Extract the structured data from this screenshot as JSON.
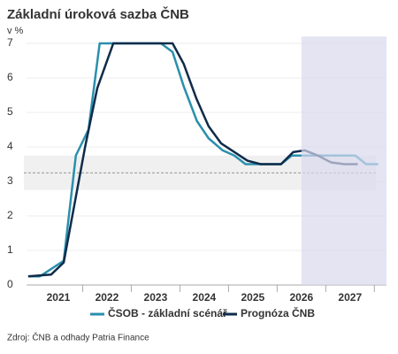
{
  "chart_data": {
    "type": "line",
    "title": "Základní úroková sazba ČNB",
    "y_unit": "v %",
    "source": "Zdroj: ČNB a odhady Patria Finance",
    "xlim": [
      2020.85,
      2028.25
    ],
    "xticks": [
      {
        "value": 2021.5,
        "label": "2021"
      },
      {
        "value": 2022.5,
        "label": "2022"
      },
      {
        "value": 2023.5,
        "label": "2023"
      },
      {
        "value": 2024.5,
        "label": "2024"
      },
      {
        "value": 2025.5,
        "label": "2025"
      },
      {
        "value": 2026.5,
        "label": "2026"
      },
      {
        "value": 2027.5,
        "label": "2027"
      }
    ],
    "ylim": [
      0,
      7.2
    ],
    "yticks": [
      0,
      1,
      2,
      3,
      4,
      5,
      6,
      7
    ],
    "grid": true,
    "forecast_start": 2026.5,
    "band": [
      2.75,
      3.75
    ],
    "reference_line": 3.25,
    "series": [
      {
        "name": "ČSOB - základní scénář",
        "color": "#2a8fad",
        "x": [
          2020.88,
          2021.12,
          2021.61,
          2021.86,
          2022.12,
          2022.35,
          2023.61,
          2023.85,
          2024.08,
          2024.35,
          2024.59,
          2024.88,
          2025.12,
          2025.35,
          2026.08,
          2026.3,
          2027.61,
          2027.83,
          2028.08
        ],
        "values": [
          0.25,
          0.25,
          0.7,
          3.75,
          4.5,
          7,
          7,
          6.75,
          5.75,
          4.75,
          4.25,
          3.9,
          3.75,
          3.5,
          3.5,
          3.75,
          3.75,
          3.5,
          3.5
        ]
      },
      {
        "name": "Prognóza ČNB",
        "color": "#0f2b4a",
        "x": [
          2020.88,
          2021.35,
          2021.61,
          2022.05,
          2022.3,
          2022.63,
          2023.85,
          2024.08,
          2024.34,
          2024.59,
          2024.85,
          2025.12,
          2025.39,
          2025.66,
          2026.08,
          2026.33,
          2026.57,
          2026.84,
          2027.11,
          2027.38,
          2027.66
        ],
        "values": [
          0.25,
          0.3,
          0.65,
          4,
          5.7,
          7,
          7,
          6.4,
          5.4,
          4.6,
          4.1,
          3.85,
          3.6,
          3.5,
          3.5,
          3.85,
          3.9,
          3.75,
          3.55,
          3.5,
          3.5
        ]
      }
    ]
  }
}
